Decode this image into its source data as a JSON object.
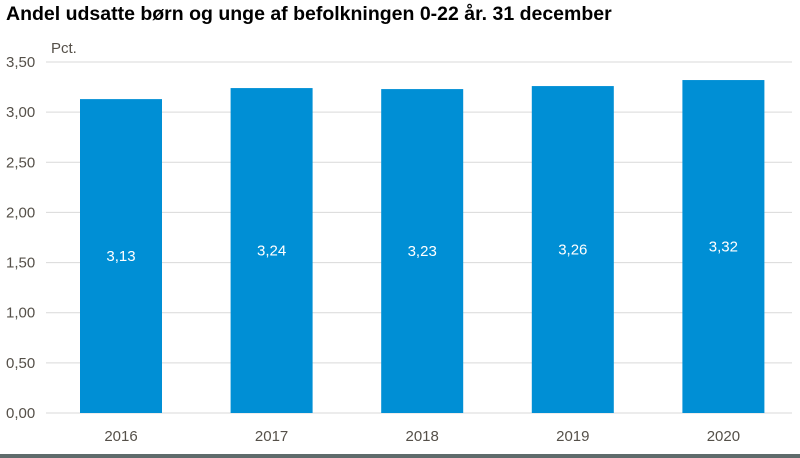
{
  "chart_data": {
    "type": "bar",
    "title": "Andel udsatte børn og unge af befolkningen 0-22 år. 31 december",
    "ylabel": "Pct.",
    "xlabel": "",
    "categories": [
      "2016",
      "2017",
      "2018",
      "2019",
      "2020"
    ],
    "values": [
      3.13,
      3.24,
      3.23,
      3.26,
      3.32
    ],
    "data_labels": [
      "3,13",
      "3,24",
      "3,23",
      "3,26",
      "3,32"
    ],
    "ylim": [
      0,
      3.5
    ],
    "yticks": [
      0,
      0.5,
      1,
      1.5,
      2,
      2.5,
      3,
      3.5
    ],
    "ytick_labels": [
      "0,00",
      "0,50",
      "1,00",
      "1,50",
      "2,00",
      "2,50",
      "3,00",
      "3,50"
    ],
    "grid": true,
    "legend": "none",
    "colors": {
      "bar": "#008fd5",
      "grid": "#d9d9d9",
      "text": "#555049"
    }
  }
}
